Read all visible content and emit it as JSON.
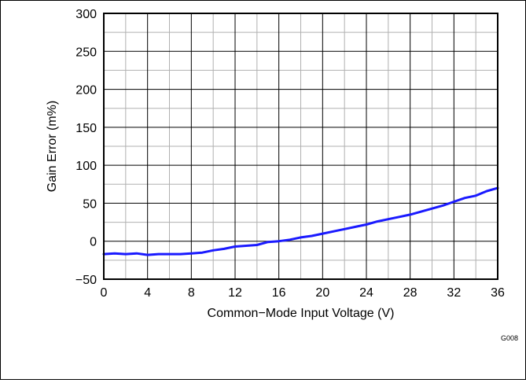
{
  "chart_data": {
    "type": "line",
    "xlabel": "Common−Mode Input Voltage (V)",
    "ylabel": "Gain Error (m%)",
    "xlim": [
      0,
      36
    ],
    "ylim": [
      -50,
      300
    ],
    "x_ticks": [
      0,
      4,
      8,
      12,
      16,
      20,
      24,
      28,
      32,
      36
    ],
    "x_tick_labels": [
      "0",
      "4",
      "8",
      "12",
      "16",
      "20",
      "24",
      "28",
      "32",
      "36"
    ],
    "y_ticks": [
      -50,
      0,
      50,
      100,
      150,
      200,
      250,
      300
    ],
    "y_tick_labels": [
      "−50",
      "0",
      "50",
      "100",
      "150",
      "200",
      "250",
      "300"
    ],
    "x_minor_grid": [
      2,
      6,
      10,
      14,
      18,
      22,
      26,
      30,
      34
    ],
    "y_minor_grid": [
      -25,
      25,
      75,
      125,
      175,
      225,
      275
    ],
    "grid": true,
    "figure_id": "G008",
    "series": [
      {
        "color": "#1a1aff",
        "x": [
          0,
          1,
          2,
          3,
          4,
          5,
          6,
          7,
          8,
          9,
          10,
          11,
          12,
          13,
          14,
          15,
          16,
          17,
          18,
          19,
          20,
          21,
          22,
          23,
          24,
          25,
          26,
          27,
          28,
          29,
          30,
          31,
          32,
          33,
          34,
          35,
          36
        ],
        "y": [
          -17,
          -16,
          -17,
          -16,
          -18,
          -17,
          -17,
          -17,
          -16,
          -15,
          -12,
          -10,
          -7,
          -6,
          -5,
          -1,
          0,
          2,
          5,
          7,
          10,
          13,
          16,
          19,
          22,
          26,
          29,
          32,
          35,
          39,
          43,
          47,
          52,
          57,
          60,
          66,
          70
        ]
      }
    ]
  }
}
